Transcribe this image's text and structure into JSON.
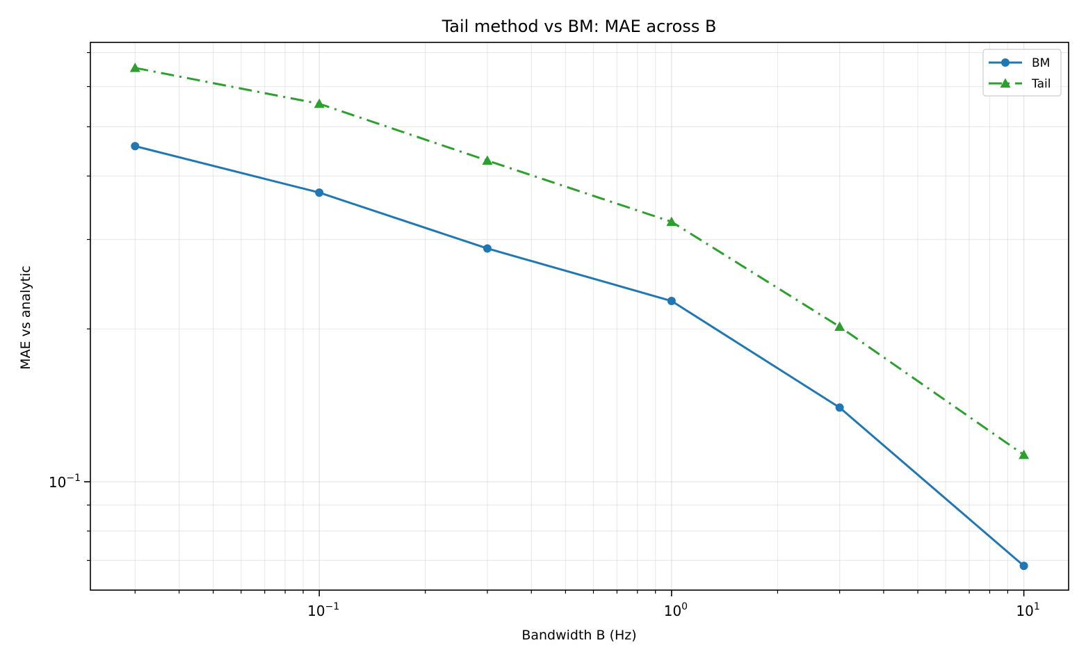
{
  "chart_data": {
    "type": "line",
    "title": "Tail method vs BM: MAE across B",
    "xlabel": "Bandwidth B (Hz)",
    "ylabel": "MAE vs analytic",
    "xscale": "log",
    "yscale": "log",
    "xlim": [
      0.0224,
      13.4
    ],
    "ylim": [
      0.0612,
      0.733
    ],
    "grid": true,
    "grid_which": "both",
    "legend_position": "upper right",
    "x": [
      0.03,
      0.1,
      0.3,
      1,
      3,
      10
    ],
    "x_major_ticks": [
      {
        "value": 0.1,
        "base": "10",
        "exp": "−1"
      },
      {
        "value": 1,
        "base": "10",
        "exp": "0"
      },
      {
        "value": 10,
        "base": "10",
        "exp": "1"
      }
    ],
    "y_major_ticks": [
      {
        "value": 0.1,
        "base": "10",
        "exp": "−1"
      }
    ],
    "series": [
      {
        "name": "BM",
        "color": "#1f77b4",
        "linestyle": "solid",
        "marker": "circle",
        "values": [
          0.458,
          0.371,
          0.288,
          0.227,
          0.14,
          0.0683
        ]
      },
      {
        "name": "Tail",
        "color": "#2ca02c",
        "linestyle": "dashdot",
        "marker": "triangle",
        "values": [
          0.653,
          0.555,
          0.429,
          0.325,
          0.202,
          0.113
        ]
      }
    ]
  }
}
